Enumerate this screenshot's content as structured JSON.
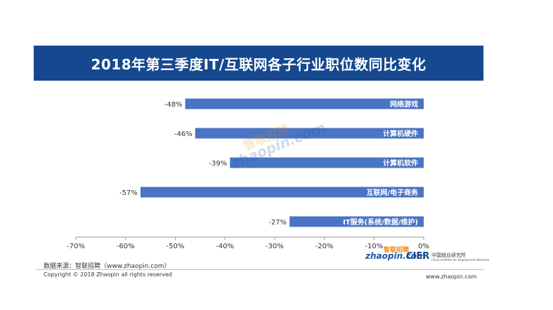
{
  "title": "2018年第三季度IT/互联网各子行业职位数同比变化",
  "chart_data": {
    "type": "bar",
    "orientation": "horizontal",
    "title": "2018年第三季度IT/互联网各子行业职位数同比变化",
    "categories": [
      "网络游戏",
      "计算机硬件",
      "计算机软件",
      "互联网/电子商务",
      "IT服务(系统/数据/维护)"
    ],
    "values": [
      -48,
      -46,
      -39,
      -57,
      -27
    ],
    "value_labels": [
      "-48%",
      "-46%",
      "-39%",
      "-57%",
      "-27%"
    ],
    "xlim": [
      -70,
      0
    ],
    "x_ticks": [
      -70,
      -60,
      -50,
      -40,
      -30,
      -20,
      -10,
      0
    ],
    "x_tick_labels": [
      "-70%",
      "-60%",
      "-50%",
      "-40%",
      "-30%",
      "-20%",
      "-10%",
      "0%"
    ],
    "bar_color": "#4a74c4",
    "grid": false,
    "legend": "none"
  },
  "footer": {
    "source": "数据来源：智联招聘（www.zhaopin.com）",
    "copyright": "Copyright © 2018 Zhaopin all rights reserved",
    "url": "www.zhaopin.com"
  },
  "logos": {
    "zhaopin_en": "zhaopin.com",
    "zhaopin_cn": "智联招聘",
    "cier": "CIER",
    "cier_cn": "中国就业研究所",
    "cier_en": "China Institute for Employment Research"
  },
  "colors": {
    "title_bg": "#15488f",
    "bar": "#4a74c4",
    "axis": "#9a9a9a"
  }
}
